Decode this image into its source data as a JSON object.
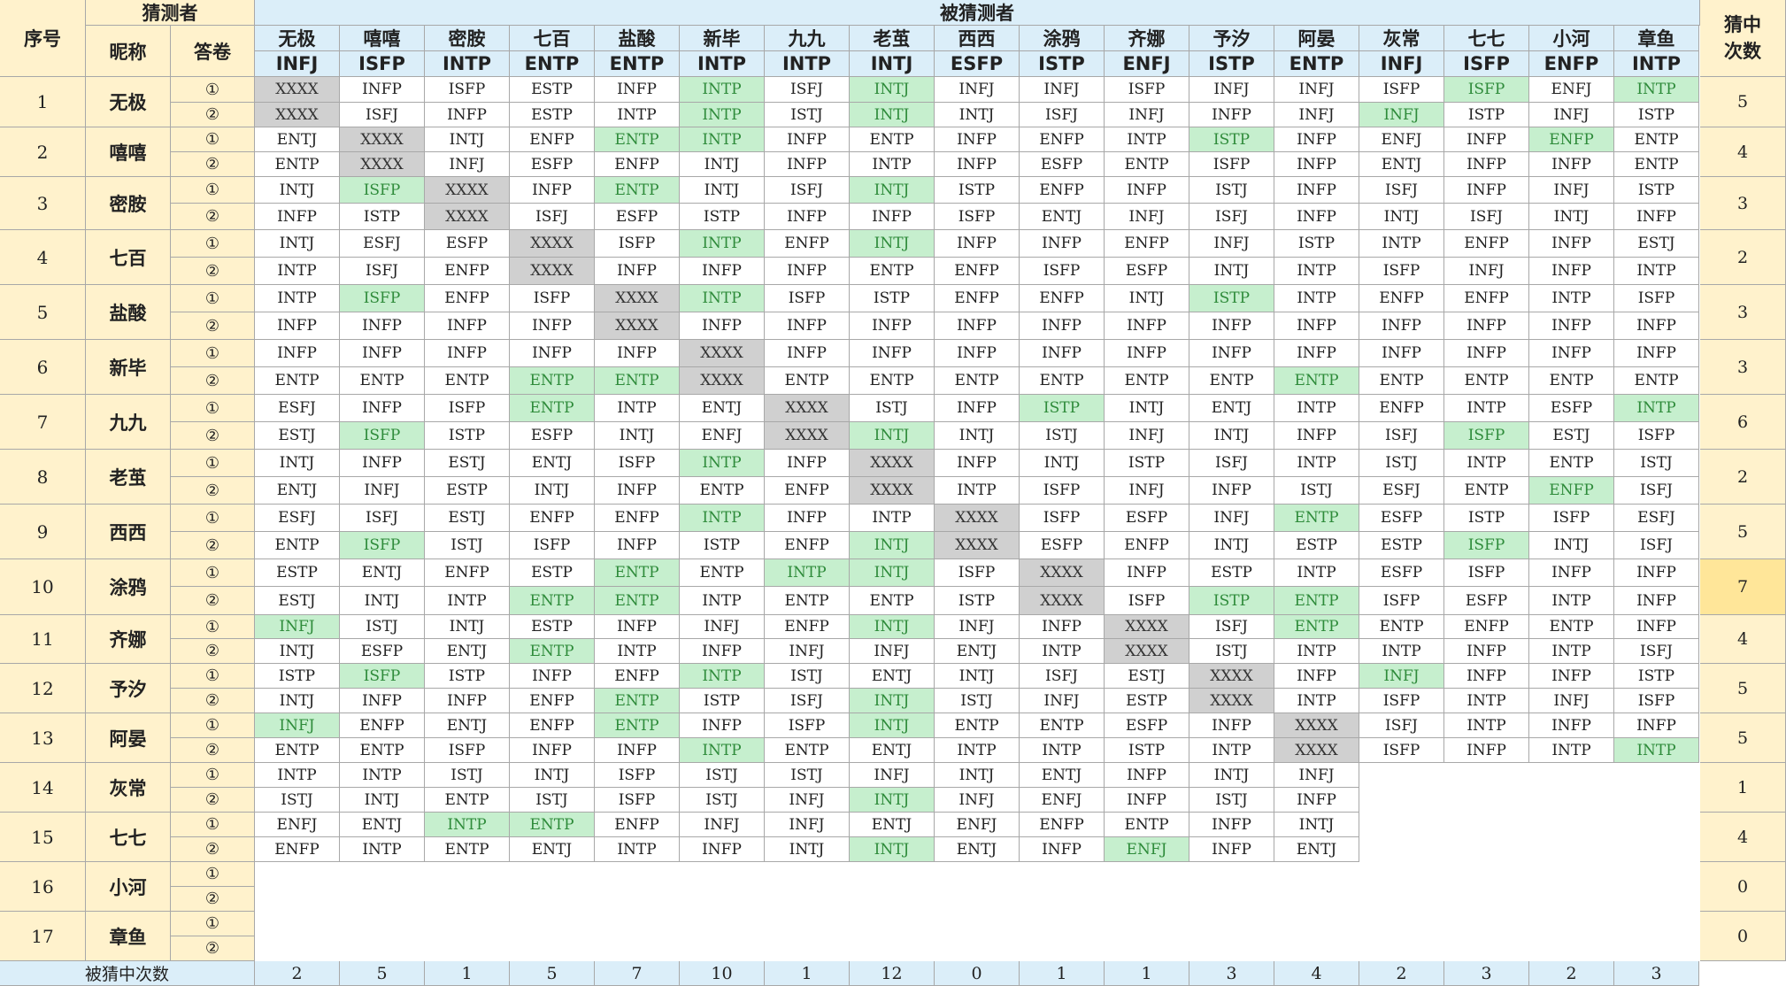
{
  "header": {
    "seq": "序号",
    "guesser": "猜测者",
    "nickname": "昵称",
    "paper": "答卷",
    "guessed": "被猜测者",
    "hits_title": "猜中次数",
    "footer_label": "被猜中次数"
  },
  "paper_labels": [
    "①",
    "②"
  ],
  "targets": [
    {
      "name": "无极",
      "type": "INFJ"
    },
    {
      "name": "嘻嘻",
      "type": "ISFP"
    },
    {
      "name": "密胺",
      "type": "INTP"
    },
    {
      "name": "七百",
      "type": "ENTP"
    },
    {
      "name": "盐酸",
      "type": "ENTP"
    },
    {
      "name": "新毕",
      "type": "INTP"
    },
    {
      "name": "九九",
      "type": "INTP"
    },
    {
      "name": "老茧",
      "type": "INTJ"
    },
    {
      "name": "西西",
      "type": "ESFP"
    },
    {
      "name": "涂鸦",
      "type": "ISTP"
    },
    {
      "name": "齐娜",
      "type": "ENFJ"
    },
    {
      "name": "予汐",
      "type": "ISTP"
    },
    {
      "name": "阿晏",
      "type": "ENTP"
    },
    {
      "name": "灰常",
      "type": "INFJ"
    },
    {
      "name": "七七",
      "type": "ISFP"
    },
    {
      "name": "小河",
      "type": "ENFP"
    },
    {
      "name": "章鱼",
      "type": "INTP"
    }
  ],
  "rows": [
    {
      "seq": "1",
      "nick": "无极",
      "hits": "5",
      "answers": [
        [
          "XXXX",
          "INFP",
          "ISFP",
          "ESTP",
          "INFP",
          "INTP",
          "ISFJ",
          "INTJ",
          "INFJ",
          "INFJ",
          "ISFP",
          "INFJ",
          "INFJ",
          "ISFP",
          "ISFP",
          "ENFJ",
          "INTP"
        ],
        [
          "XXXX",
          "ISFJ",
          "INFP",
          "ESTP",
          "INTP",
          "INTP",
          "ISTJ",
          "INTJ",
          "INTJ",
          "ISFJ",
          "INFJ",
          "INFP",
          "INFJ",
          "INFJ",
          "ISTP",
          "INFJ",
          "ISTP"
        ]
      ]
    },
    {
      "seq": "2",
      "nick": "嘻嘻",
      "hits": "4",
      "answers": [
        [
          "ENTJ",
          "XXXX",
          "INTJ",
          "ENFP",
          "ENTP",
          "INTP",
          "INFP",
          "ENTP",
          "INFP",
          "ENFP",
          "INTP",
          "ISTP",
          "INFP",
          "ENFJ",
          "INFP",
          "ENFP",
          "ENTP"
        ],
        [
          "ENTP",
          "XXXX",
          "INFJ",
          "ESFP",
          "ENFP",
          "INTJ",
          "INFP",
          "INTP",
          "INFP",
          "ESFP",
          "ENTP",
          "ISFP",
          "INFP",
          "ENTJ",
          "INFP",
          "INFP",
          "ENTP"
        ]
      ]
    },
    {
      "seq": "3",
      "nick": "密胺",
      "hits": "3",
      "answers": [
        [
          "INTJ",
          "ISFP",
          "XXXX",
          "INFP",
          "ENTP",
          "INTJ",
          "ISFJ",
          "INTJ",
          "ISTP",
          "ENFP",
          "INFP",
          "ISTJ",
          "INFP",
          "ISFJ",
          "INFP",
          "INFJ",
          "ISTP"
        ],
        [
          "INFP",
          "ISTP",
          "XXXX",
          "ISFJ",
          "ESFP",
          "ISTP",
          "INFP",
          "INFP",
          "ISFP",
          "ENTJ",
          "INFJ",
          "ISFJ",
          "INFP",
          "INTJ",
          "ISFJ",
          "INTJ",
          "INFP"
        ]
      ]
    },
    {
      "seq": "4",
      "nick": "七百",
      "hits": "2",
      "answers": [
        [
          "INTJ",
          "ESFJ",
          "ESFP",
          "XXXX",
          "ISFP",
          "INTP",
          "ENFP",
          "INTJ",
          "INFP",
          "INFP",
          "ENFP",
          "INFJ",
          "ISTP",
          "INTP",
          "ENFP",
          "INFP",
          "ESTJ"
        ],
        [
          "INTP",
          "ISFJ",
          "ENFP",
          "XXXX",
          "INFP",
          "INFP",
          "INFP",
          "ENTP",
          "ENFP",
          "ISFP",
          "ESFP",
          "INTJ",
          "INTP",
          "ISFP",
          "INFJ",
          "INFP",
          "INTP"
        ]
      ]
    },
    {
      "seq": "5",
      "nick": "盐酸",
      "hits": "3",
      "answers": [
        [
          "INTP",
          "ISFP",
          "ENFP",
          "ISFP",
          "XXXX",
          "INTP",
          "ISFP",
          "ISTP",
          "ENFP",
          "ENFP",
          "INTJ",
          "ISTP",
          "INTP",
          "ENFP",
          "ENFP",
          "INTP",
          "ISFP"
        ],
        [
          "INFP",
          "INFP",
          "INFP",
          "INFP",
          "XXXX",
          "INFP",
          "INFP",
          "INFP",
          "INFP",
          "INFP",
          "INFP",
          "INFP",
          "INFP",
          "INFP",
          "INFP",
          "INFP",
          "INFP"
        ]
      ]
    },
    {
      "seq": "6",
      "nick": "新毕",
      "hits": "3",
      "answers": [
        [
          "INFP",
          "INFP",
          "INFP",
          "INFP",
          "INFP",
          "XXXX",
          "INFP",
          "INFP",
          "INFP",
          "INFP",
          "INFP",
          "INFP",
          "INFP",
          "INFP",
          "INFP",
          "INFP",
          "INFP"
        ],
        [
          "ENTP",
          "ENTP",
          "ENTP",
          "ENTP",
          "ENTP",
          "XXXX",
          "ENTP",
          "ENTP",
          "ENTP",
          "ENTP",
          "ENTP",
          "ENTP",
          "ENTP",
          "ENTP",
          "ENTP",
          "ENTP",
          "ENTP"
        ]
      ]
    },
    {
      "seq": "7",
      "nick": "九九",
      "hits": "6",
      "answers": [
        [
          "ESFJ",
          "INFP",
          "ISFP",
          "ENTP",
          "INTP",
          "ENTJ",
          "XXXX",
          "ISTJ",
          "INFP",
          "ISTP",
          "INTJ",
          "ENTJ",
          "INTP",
          "ENFP",
          "INTP",
          "ESFP",
          "INTP"
        ],
        [
          "ESTJ",
          "ISFP",
          "ISTP",
          "ESFP",
          "INTJ",
          "ENFJ",
          "XXXX",
          "INTJ",
          "INTJ",
          "ISTJ",
          "INFJ",
          "INTJ",
          "INFP",
          "ISFJ",
          "ISFP",
          "ESTJ",
          "ISFP"
        ]
      ]
    },
    {
      "seq": "8",
      "nick": "老茧",
      "hits": "2",
      "answers": [
        [
          "INTJ",
          "INFP",
          "ESTJ",
          "ENTJ",
          "ISFP",
          "INTP",
          "INFP",
          "XXXX",
          "INFP",
          "INTJ",
          "ISTP",
          "ISFJ",
          "INTP",
          "ISTJ",
          "INTP",
          "ENTP",
          "ISTJ"
        ],
        [
          "ENTJ",
          "INFJ",
          "ESTP",
          "INTJ",
          "INFP",
          "ENTP",
          "ENFP",
          "XXXX",
          "INTP",
          "ISFP",
          "INFJ",
          "INFP",
          "ISTJ",
          "ESFJ",
          "ENTP",
          "ENFP",
          "ISFJ"
        ]
      ]
    },
    {
      "seq": "9",
      "nick": "西西",
      "hits": "5",
      "answers": [
        [
          "ESFJ",
          "ISFJ",
          "ESTJ",
          "ENFP",
          "ENFP",
          "INTP",
          "INFP",
          "INTP",
          "XXXX",
          "ISFP",
          "ESFP",
          "INFJ",
          "ENTP",
          "ESFP",
          "ISTP",
          "ISFP",
          "ESFJ"
        ],
        [
          "ENTP",
          "ISFP",
          "ISTJ",
          "ISFP",
          "INFP",
          "ISTP",
          "ENFP",
          "INTJ",
          "XXXX",
          "ESFP",
          "ENFP",
          "INTJ",
          "ESTP",
          "ESTP",
          "ISFP",
          "INTJ",
          "ISFJ"
        ]
      ]
    },
    {
      "seq": "10",
      "nick": "涂鸦",
      "hits": "7",
      "max": true,
      "answers": [
        [
          "ESTP",
          "ENTJ",
          "ENFP",
          "ESTP",
          "ENTP",
          "ENTP",
          "INTP",
          "INTJ",
          "ISFP",
          "XXXX",
          "INFP",
          "ESTP",
          "INTP",
          "ESFP",
          "ISFP",
          "INFP",
          "INFP"
        ],
        [
          "ESTJ",
          "INTJ",
          "INTP",
          "ENTP",
          "ENTP",
          "INTP",
          "ENTP",
          "ENTP",
          "ISTP",
          "XXXX",
          "ISFP",
          "ISTP",
          "ENTP",
          "ISFP",
          "ESFP",
          "INTP",
          "INFP"
        ]
      ]
    },
    {
      "seq": "11",
      "nick": "齐娜",
      "hits": "4",
      "answers": [
        [
          "INFJ",
          "ISTJ",
          "INTJ",
          "ESTP",
          "INFP",
          "INFJ",
          "ENFP",
          "INTJ",
          "INFJ",
          "INFP",
          "XXXX",
          "ISFJ",
          "ENTP",
          "ENTP",
          "ENFP",
          "ENTP",
          "INFP"
        ],
        [
          "INTJ",
          "ESFP",
          "ENTJ",
          "ENTP",
          "INTP",
          "INFP",
          "INFJ",
          "INFJ",
          "ENTJ",
          "INTP",
          "XXXX",
          "ISTJ",
          "INTP",
          "INTP",
          "INFP",
          "INTP",
          "ISFJ"
        ]
      ]
    },
    {
      "seq": "12",
      "nick": "予汐",
      "hits": "5",
      "answers": [
        [
          "ISTP",
          "ISFP",
          "ISTP",
          "INFP",
          "ENFP",
          "INTP",
          "ISTJ",
          "ENTJ",
          "INTJ",
          "ISFJ",
          "ESTJ",
          "XXXX",
          "INFP",
          "INFJ",
          "INFP",
          "INFP",
          "ISTP"
        ],
        [
          "INTJ",
          "INFP",
          "INFP",
          "ENFP",
          "ENTP",
          "ISTP",
          "ISFJ",
          "INTJ",
          "ISTJ",
          "INFJ",
          "ESTP",
          "XXXX",
          "INTP",
          "ISFP",
          "INTP",
          "INFJ",
          "ISFP"
        ]
      ]
    },
    {
      "seq": "13",
      "nick": "阿晏",
      "hits": "5",
      "answers": [
        [
          "INFJ",
          "ENFP",
          "ENTJ",
          "ENFP",
          "ENTP",
          "INFP",
          "ISFP",
          "INTJ",
          "ENTP",
          "ENTP",
          "ESFP",
          "INFP",
          "XXXX",
          "ISFJ",
          "INTP",
          "INFP",
          "INFP"
        ],
        [
          "ENTP",
          "ENTP",
          "ISFP",
          "INFP",
          "INFP",
          "INTP",
          "ENTP",
          "ENTJ",
          "INTP",
          "INTP",
          "ISTP",
          "INTP",
          "XXXX",
          "ISFP",
          "INFP",
          "INTP",
          "INTP"
        ]
      ]
    },
    {
      "seq": "14",
      "nick": "灰常",
      "hits": "1",
      "answers": [
        [
          "INTP",
          "INTP",
          "ISTJ",
          "INTJ",
          "ISFP",
          "ISTJ",
          "ISTJ",
          "INFJ",
          "INTJ",
          "ENTJ",
          "INFP",
          "INTJ",
          "INFJ",
          "",
          "",
          "",
          ""
        ],
        [
          "ISTJ",
          "INTJ",
          "ENTP",
          "ISTJ",
          "ISFP",
          "ISTJ",
          "INFJ",
          "INTJ",
          "INFJ",
          "ENFJ",
          "INFP",
          "ISTJ",
          "INFP",
          "",
          "",
          "",
          ""
        ]
      ]
    },
    {
      "seq": "15",
      "nick": "七七",
      "hits": "4",
      "answers": [
        [
          "ENFJ",
          "ENTJ",
          "INTP",
          "ENTP",
          "ENFP",
          "INFJ",
          "INFJ",
          "ENTJ",
          "ENFJ",
          "ENFP",
          "ENTP",
          "INFP",
          "INTJ",
          "",
          "",
          "",
          ""
        ],
        [
          "ENFP",
          "INTP",
          "ENTP",
          "ENTJ",
          "INTP",
          "INFP",
          "INTJ",
          "INTJ",
          "ENTJ",
          "INFP",
          "ENFJ",
          "INFP",
          "ENTJ",
          "",
          "",
          "",
          ""
        ]
      ]
    },
    {
      "seq": "16",
      "nick": "小河",
      "hits": "0",
      "answers": [
        [
          "",
          "",
          "",
          "",
          "",
          "",
          "",
          "",
          "",
          "",
          "",
          "",
          "",
          "",
          "",
          "",
          ""
        ],
        [
          "",
          "",
          "",
          "",
          "",
          "",
          "",
          "",
          "",
          "",
          "",
          "",
          "",
          "",
          "",
          "",
          ""
        ]
      ]
    },
    {
      "seq": "17",
      "nick": "章鱼",
      "hits": "0",
      "answers": [
        [
          "",
          "",
          "",
          "",
          "",
          "",
          "",
          "",
          "",
          "",
          "",
          "",
          "",
          "",
          "",
          "",
          ""
        ],
        [
          "",
          "",
          "",
          "",
          "",
          "",
          "",
          "",
          "",
          "",
          "",
          "",
          "",
          "",
          "",
          "",
          ""
        ]
      ]
    }
  ],
  "hit_cells": [
    "0-0-5",
    "0-0-7",
    "0-0-14",
    "0-0-16",
    "0-1-5",
    "0-1-7",
    "0-1-13",
    "1-0-4",
    "1-0-5",
    "1-0-11",
    "1-0-15",
    "2-0-1",
    "2-0-4",
    "2-0-7",
    "3-0-5",
    "3-0-7",
    "4-0-1",
    "4-0-5",
    "4-0-11",
    "5-1-3",
    "5-1-4",
    "5-1-12",
    "6-0-3",
    "6-0-9",
    "6-0-16",
    "6-1-1",
    "6-1-7",
    "6-1-14",
    "7-0-5",
    "7-1-15",
    "8-0-5",
    "8-0-12",
    "8-1-1",
    "8-1-7",
    "8-1-14",
    "9-0-4",
    "9-0-6",
    "9-0-7",
    "9-1-3",
    "9-1-4",
    "9-1-11",
    "9-1-12",
    "10-0-0",
    "10-0-7",
    "10-0-12",
    "10-1-3",
    "11-0-1",
    "11-0-5",
    "11-0-13",
    "11-1-4",
    "11-1-7",
    "12-0-0",
    "12-0-4",
    "12-0-7",
    "12-1-5",
    "12-1-16",
    "13-1-7",
    "14-0-2",
    "14-0-3",
    "14-1-7",
    "14-1-10"
  ],
  "footer_counts": [
    "2",
    "5",
    "1",
    "5",
    "7",
    "10",
    "1",
    "12",
    "0",
    "1",
    "1",
    "3",
    "4",
    "2",
    "3",
    "2",
    "3"
  ]
}
